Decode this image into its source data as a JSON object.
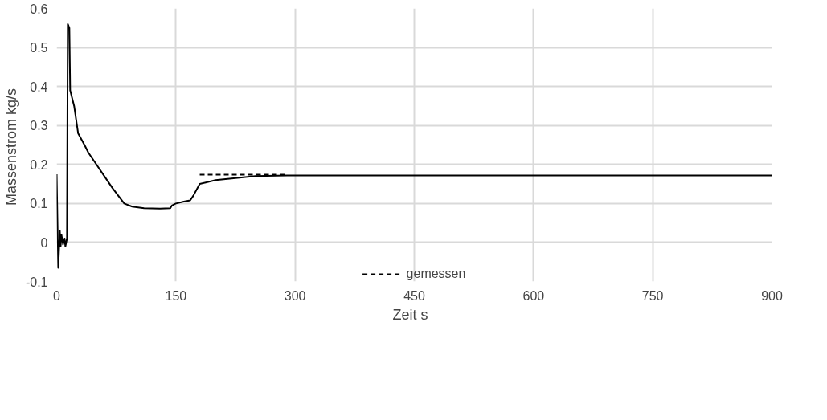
{
  "chart_data": {
    "type": "line",
    "xlabel": "Zeit   s",
    "ylabel": "Massenstrom  kg/s",
    "xlim": [
      0,
      900
    ],
    "ylim": [
      -0.1,
      0.6
    ],
    "xticks": [
      0,
      150,
      300,
      450,
      600,
      750,
      900
    ],
    "yticks": [
      -0.1,
      0,
      0.1,
      0.2,
      0.3,
      0.4,
      0.5,
      0.6
    ],
    "grid": true,
    "legend": "bottom",
    "series": [
      {
        "color": "#000000",
        "line_style": "solid",
        "x": [
          0,
          2,
          4,
          5,
          6,
          8,
          10,
          11,
          13,
          14,
          16,
          17,
          22,
          27,
          35,
          40,
          50,
          60,
          70,
          85,
          95,
          110,
          130,
          143,
          145,
          150,
          160,
          168,
          172,
          180,
          200,
          230,
          250,
          290,
          900
        ],
        "values": [
          0.175,
          -0.065,
          0.03,
          -0.01,
          0.02,
          -0.005,
          0.01,
          -0.01,
          0.01,
          0.56,
          0.55,
          0.39,
          0.35,
          0.28,
          0.25,
          0.23,
          0.2,
          0.17,
          0.14,
          0.1,
          0.092,
          0.088,
          0.087,
          0.088,
          0.095,
          0.1,
          0.105,
          0.108,
          0.12,
          0.15,
          0.16,
          0.166,
          0.17,
          0.172,
          0.172
        ]
      },
      {
        "name": "gemessen",
        "color": "#000000",
        "line_style": "dashed",
        "x": [
          180,
          290
        ],
        "values": [
          0.174,
          0.174
        ]
      }
    ]
  }
}
